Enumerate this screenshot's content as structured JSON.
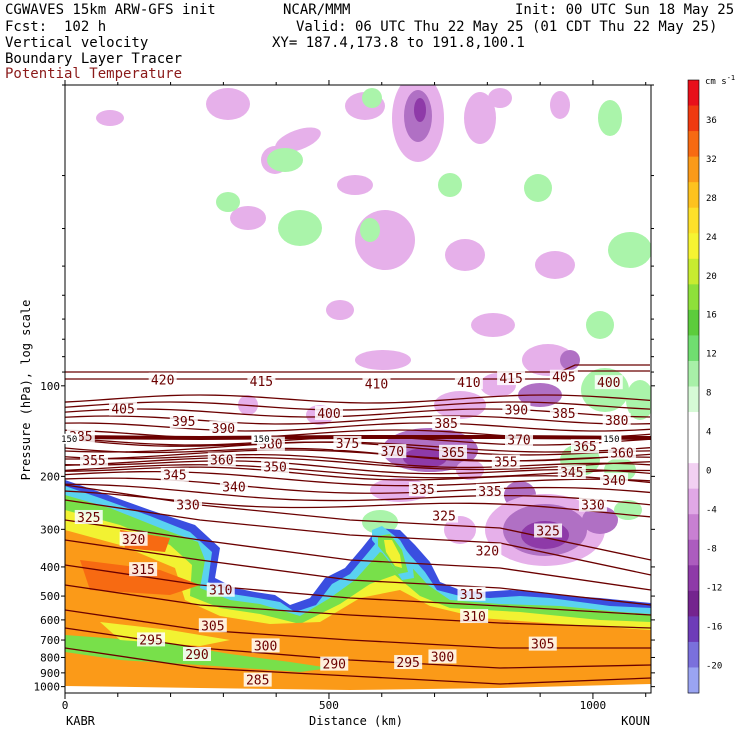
{
  "header": {
    "model": "CGWAVES 15km ARW-GFS init",
    "org": "NCAR/MMM",
    "init": "Init: 00 UTC Sun 18 May 25",
    "fcst": "Fcst:  102 h",
    "valid": "Valid: 06 UTC Thu 22 May 25 (01 CDT Thu 22 May 25)",
    "field1": "Vertical velocity",
    "xy": "XY= 187.4,173.8 to 191.8,100.1",
    "field2": "Boundary Layer Tracer",
    "field3": "Potential Temperature",
    "field3_color": "#8b1a1a"
  },
  "chart_data": {
    "type": "heatmap",
    "xlabel": "Distance (km)",
    "ylabel": "Pressure (hPa), log scale",
    "x_ticks": [
      0,
      500,
      1000
    ],
    "xlim": [
      0,
      1110
    ],
    "y_ticks": [
      100,
      200,
      300,
      400,
      500,
      600,
      700,
      800,
      900,
      1000
    ],
    "y_scale": "log",
    "ylim": [
      1050,
      10
    ],
    "left_endpoint": "KABR",
    "right_endpoint": "KOUN",
    "colorbar": {
      "unit": "cm s",
      "unit_exp": "-1",
      "labels": [
        "36",
        "32",
        "28",
        "24",
        "20",
        "16",
        "12",
        "8",
        "4",
        "0",
        "-4",
        "-8",
        "-12",
        "-16",
        "-20"
      ],
      "colors": [
        "#e8101a",
        "#f03a10",
        "#f76a12",
        "#fb9a18",
        "#fdc21e",
        "#fde02a",
        "#f6f432",
        "#c8ec30",
        "#8ee03a",
        "#5ccc3c",
        "#70de70",
        "#a8f0a8",
        "#d6fad6",
        "#ffffff",
        "#ffffff",
        "#f2d0f2",
        "#e0a8e6",
        "#c880d2",
        "#ac5cbe",
        "#8e3aa8",
        "#74248e",
        "#6e3cb8",
        "#7a70dc",
        "#9aa4f2"
      ]
    },
    "theta_labels": [
      {
        "text": "420",
        "x": 185,
        "p": 96
      },
      {
        "text": "415",
        "x": 372,
        "p": 97
      },
      {
        "text": "410",
        "x": 590,
        "p": 99
      },
      {
        "text": "410",
        "x": 765,
        "p": 98
      },
      {
        "text": "415",
        "x": 845,
        "p": 95
      },
      {
        "text": "405",
        "x": 945,
        "p": 94
      },
      {
        "text": "400",
        "x": 1030,
        "p": 98
      },
      {
        "text": "405",
        "x": 110,
        "p": 120
      },
      {
        "text": "400",
        "x": 500,
        "p": 124
      },
      {
        "text": "390",
        "x": 855,
        "p": 121
      },
      {
        "text": "385",
        "x": 945,
        "p": 124
      },
      {
        "text": "380",
        "x": 1045,
        "p": 131
      },
      {
        "text": "395",
        "x": 225,
        "p": 132
      },
      {
        "text": "390",
        "x": 300,
        "p": 139
      },
      {
        "text": "385",
        "x": 722,
        "p": 134
      },
      {
        "text": "380",
        "x": 390,
        "p": 157
      },
      {
        "text": "375",
        "x": 535,
        "p": 156
      },
      {
        "text": "370",
        "x": 860,
        "p": 152
      },
      {
        "text": "365",
        "x": 985,
        "p": 160
      },
      {
        "text": "370",
        "x": 620,
        "p": 166
      },
      {
        "text": "365",
        "x": 735,
        "p": 167
      },
      {
        "text": "360",
        "x": 1055,
        "p": 168
      },
      {
        "text": "385",
        "x": 30,
        "p": 148
      },
      {
        "text": "355",
        "x": 55,
        "p": 178
      },
      {
        "text": "360",
        "x": 297,
        "p": 177
      },
      {
        "text": "355",
        "x": 835,
        "p": 180
      },
      {
        "text": "350",
        "x": 398,
        "p": 187
      },
      {
        "text": "345",
        "x": 208,
        "p": 199
      },
      {
        "text": "345",
        "x": 960,
        "p": 195
      },
      {
        "text": "340",
        "x": 320,
        "p": 218
      },
      {
        "text": "340",
        "x": 1040,
        "p": 207
      },
      {
        "text": "335",
        "x": 678,
        "p": 222
      },
      {
        "text": "335",
        "x": 805,
        "p": 225
      },
      {
        "text": "330",
        "x": 233,
        "p": 250
      },
      {
        "text": "330",
        "x": 1000,
        "p": 250
      },
      {
        "text": "325",
        "x": 45,
        "p": 275
      },
      {
        "text": "325",
        "x": 718,
        "p": 272
      },
      {
        "text": "325",
        "x": 915,
        "p": 305
      },
      {
        "text": "320",
        "x": 130,
        "p": 325
      },
      {
        "text": "320",
        "x": 800,
        "p": 355
      },
      {
        "text": "315",
        "x": 148,
        "p": 410
      },
      {
        "text": "315",
        "x": 770,
        "p": 495
      },
      {
        "text": "310",
        "x": 295,
        "p": 480
      },
      {
        "text": "310",
        "x": 775,
        "p": 587
      },
      {
        "text": "305",
        "x": 280,
        "p": 630
      },
      {
        "text": "305",
        "x": 905,
        "p": 725
      },
      {
        "text": "300",
        "x": 380,
        "p": 735
      },
      {
        "text": "300",
        "x": 715,
        "p": 800
      },
      {
        "text": "295",
        "x": 163,
        "p": 702
      },
      {
        "text": "295",
        "x": 650,
        "p": 835
      },
      {
        "text": "290",
        "x": 250,
        "p": 785
      },
      {
        "text": "290",
        "x": 510,
        "p": 845
      },
      {
        "text": "285",
        "x": 365,
        "p": 955
      }
    ],
    "tropopause_labels": [
      {
        "text": "150",
        "x": 8,
        "p": 150
      },
      {
        "text": "150",
        "x": 372,
        "p": 150
      },
      {
        "text": "150",
        "x": 1035,
        "p": 150
      }
    ]
  }
}
